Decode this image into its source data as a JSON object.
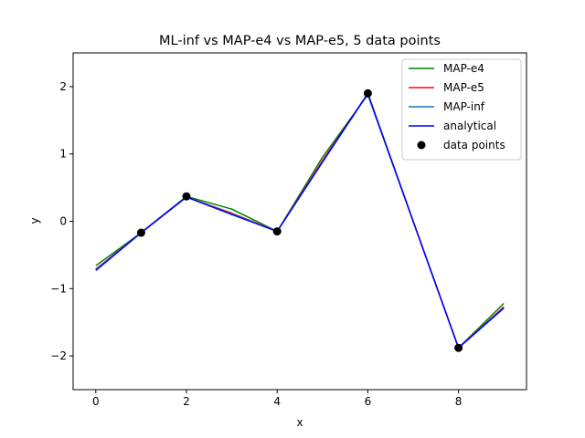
{
  "chart_data": {
    "type": "line",
    "title": "ML-inf vs MAP-e4 vs MAP-e5, 5 data points",
    "xlabel": "x",
    "ylabel": "y",
    "xlim": [
      -0.5,
      9.5
    ],
    "ylim": [
      -2.5,
      2.5
    ],
    "xticks": [
      0,
      2,
      4,
      6,
      8
    ],
    "yticks": [
      -2,
      -1,
      0,
      1,
      2
    ],
    "xtick_labels": [
      "0",
      "2",
      "4",
      "6",
      "8"
    ],
    "ytick_labels": [
      "−2",
      "−1",
      "0",
      "1",
      "2"
    ],
    "grid": false,
    "legend_position": "top-right",
    "series": [
      {
        "name": "MAP-e4",
        "color": "#008000",
        "style": "line",
        "x": [
          0,
          1,
          2,
          3,
          4,
          5,
          6,
          7,
          8,
          9
        ],
        "y": [
          -0.66,
          -0.17,
          0.37,
          0.18,
          -0.15,
          0.95,
          1.88,
          0.0,
          -1.88,
          -1.22
        ]
      },
      {
        "name": "MAP-e5",
        "color": "#ff0000",
        "style": "line",
        "x": [
          0,
          1,
          2,
          3,
          4,
          5,
          6,
          7,
          8,
          9
        ],
        "y": [
          -0.71,
          -0.17,
          0.36,
          0.12,
          -0.15,
          0.9,
          1.89,
          0.0,
          -1.88,
          -1.27
        ]
      },
      {
        "name": "MAP-inf",
        "color": "#1f77b4",
        "style": "line",
        "x": [
          0,
          1,
          2,
          3,
          4,
          5,
          6,
          7,
          8,
          9
        ],
        "y": [
          -0.72,
          -0.17,
          0.36,
          0.11,
          -0.15,
          0.88,
          1.89,
          0.0,
          -1.88,
          -1.28
        ]
      },
      {
        "name": "analytical",
        "color": "#0000ff",
        "style": "line",
        "x": [
          0,
          1,
          2,
          3,
          4,
          5,
          6,
          7,
          8,
          9
        ],
        "y": [
          -0.73,
          -0.17,
          0.36,
          0.1,
          -0.15,
          0.88,
          1.9,
          0.0,
          -1.88,
          -1.29
        ]
      },
      {
        "name": "data points",
        "color": "#000000",
        "style": "scatter",
        "x": [
          1,
          2,
          4,
          6,
          8
        ],
        "y": [
          -0.17,
          0.37,
          -0.15,
          1.9,
          -1.88
        ]
      }
    ]
  }
}
